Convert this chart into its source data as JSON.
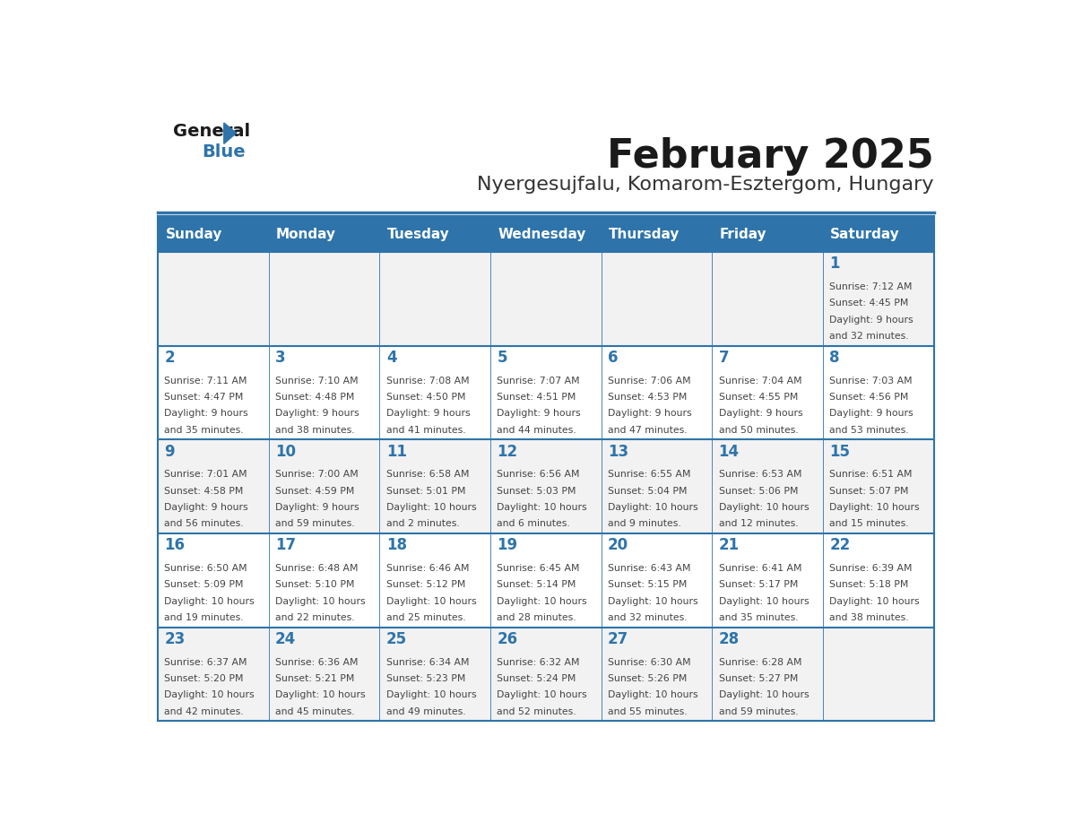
{
  "title": "February 2025",
  "subtitle": "Nyergesujfalu, Komarom-Esztergom, Hungary",
  "header_bg_color": "#2E74AA",
  "header_text_color": "#FFFFFF",
  "cell_bg_even": "#F2F2F2",
  "cell_bg_odd": "#FFFFFF",
  "border_color": "#2E74AA",
  "day_names": [
    "Sunday",
    "Monday",
    "Tuesday",
    "Wednesday",
    "Thursday",
    "Friday",
    "Saturday"
  ],
  "title_color": "#1a1a1a",
  "subtitle_color": "#333333",
  "number_color": "#2E74AA",
  "info_color": "#444444",
  "logo_text_color": "#1a1a1a",
  "logo_blue_color": "#2E74AA",
  "days": [
    {
      "day": 1,
      "col": 6,
      "row": 0,
      "sunrise": "7:12 AM",
      "sunset": "4:45 PM",
      "daylight": "9 hours and 32 minutes."
    },
    {
      "day": 2,
      "col": 0,
      "row": 1,
      "sunrise": "7:11 AM",
      "sunset": "4:47 PM",
      "daylight": "9 hours and 35 minutes."
    },
    {
      "day": 3,
      "col": 1,
      "row": 1,
      "sunrise": "7:10 AM",
      "sunset": "4:48 PM",
      "daylight": "9 hours and 38 minutes."
    },
    {
      "day": 4,
      "col": 2,
      "row": 1,
      "sunrise": "7:08 AM",
      "sunset": "4:50 PM",
      "daylight": "9 hours and 41 minutes."
    },
    {
      "day": 5,
      "col": 3,
      "row": 1,
      "sunrise": "7:07 AM",
      "sunset": "4:51 PM",
      "daylight": "9 hours and 44 minutes."
    },
    {
      "day": 6,
      "col": 4,
      "row": 1,
      "sunrise": "7:06 AM",
      "sunset": "4:53 PM",
      "daylight": "9 hours and 47 minutes."
    },
    {
      "day": 7,
      "col": 5,
      "row": 1,
      "sunrise": "7:04 AM",
      "sunset": "4:55 PM",
      "daylight": "9 hours and 50 minutes."
    },
    {
      "day": 8,
      "col": 6,
      "row": 1,
      "sunrise": "7:03 AM",
      "sunset": "4:56 PM",
      "daylight": "9 hours and 53 minutes."
    },
    {
      "day": 9,
      "col": 0,
      "row": 2,
      "sunrise": "7:01 AM",
      "sunset": "4:58 PM",
      "daylight": "9 hours and 56 minutes."
    },
    {
      "day": 10,
      "col": 1,
      "row": 2,
      "sunrise": "7:00 AM",
      "sunset": "4:59 PM",
      "daylight": "9 hours and 59 minutes."
    },
    {
      "day": 11,
      "col": 2,
      "row": 2,
      "sunrise": "6:58 AM",
      "sunset": "5:01 PM",
      "daylight": "10 hours and 2 minutes."
    },
    {
      "day": 12,
      "col": 3,
      "row": 2,
      "sunrise": "6:56 AM",
      "sunset": "5:03 PM",
      "daylight": "10 hours and 6 minutes."
    },
    {
      "day": 13,
      "col": 4,
      "row": 2,
      "sunrise": "6:55 AM",
      "sunset": "5:04 PM",
      "daylight": "10 hours and 9 minutes."
    },
    {
      "day": 14,
      "col": 5,
      "row": 2,
      "sunrise": "6:53 AM",
      "sunset": "5:06 PM",
      "daylight": "10 hours and 12 minutes."
    },
    {
      "day": 15,
      "col": 6,
      "row": 2,
      "sunrise": "6:51 AM",
      "sunset": "5:07 PM",
      "daylight": "10 hours and 15 minutes."
    },
    {
      "day": 16,
      "col": 0,
      "row": 3,
      "sunrise": "6:50 AM",
      "sunset": "5:09 PM",
      "daylight": "10 hours and 19 minutes."
    },
    {
      "day": 17,
      "col": 1,
      "row": 3,
      "sunrise": "6:48 AM",
      "sunset": "5:10 PM",
      "daylight": "10 hours and 22 minutes."
    },
    {
      "day": 18,
      "col": 2,
      "row": 3,
      "sunrise": "6:46 AM",
      "sunset": "5:12 PM",
      "daylight": "10 hours and 25 minutes."
    },
    {
      "day": 19,
      "col": 3,
      "row": 3,
      "sunrise": "6:45 AM",
      "sunset": "5:14 PM",
      "daylight": "10 hours and 28 minutes."
    },
    {
      "day": 20,
      "col": 4,
      "row": 3,
      "sunrise": "6:43 AM",
      "sunset": "5:15 PM",
      "daylight": "10 hours and 32 minutes."
    },
    {
      "day": 21,
      "col": 5,
      "row": 3,
      "sunrise": "6:41 AM",
      "sunset": "5:17 PM",
      "daylight": "10 hours and 35 minutes."
    },
    {
      "day": 22,
      "col": 6,
      "row": 3,
      "sunrise": "6:39 AM",
      "sunset": "5:18 PM",
      "daylight": "10 hours and 38 minutes."
    },
    {
      "day": 23,
      "col": 0,
      "row": 4,
      "sunrise": "6:37 AM",
      "sunset": "5:20 PM",
      "daylight": "10 hours and 42 minutes."
    },
    {
      "day": 24,
      "col": 1,
      "row": 4,
      "sunrise": "6:36 AM",
      "sunset": "5:21 PM",
      "daylight": "10 hours and 45 minutes."
    },
    {
      "day": 25,
      "col": 2,
      "row": 4,
      "sunrise": "6:34 AM",
      "sunset": "5:23 PM",
      "daylight": "10 hours and 49 minutes."
    },
    {
      "day": 26,
      "col": 3,
      "row": 4,
      "sunrise": "6:32 AM",
      "sunset": "5:24 PM",
      "daylight": "10 hours and 52 minutes."
    },
    {
      "day": 27,
      "col": 4,
      "row": 4,
      "sunrise": "6:30 AM",
      "sunset": "5:26 PM",
      "daylight": "10 hours and 55 minutes."
    },
    {
      "day": 28,
      "col": 5,
      "row": 4,
      "sunrise": "6:28 AM",
      "sunset": "5:27 PM",
      "daylight": "10 hours and 59 minutes."
    }
  ]
}
